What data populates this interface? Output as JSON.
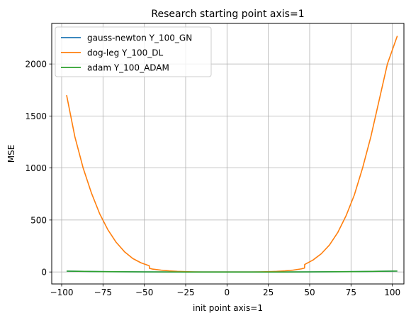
{
  "chart_data": {
    "type": "line",
    "title": "Research starting point axis=1",
    "xlabel": "init point axis=1",
    "ylabel": "MSE",
    "xlim": [
      -106,
      107
    ],
    "ylim": [
      -115,
      2390
    ],
    "xticks": [
      -100,
      -75,
      -50,
      -25,
      0,
      25,
      50,
      75,
      100
    ],
    "xtick_labels": [
      "−100",
      "−75",
      "−50",
      "−25",
      "0",
      "25",
      "50",
      "75",
      "100"
    ],
    "yticks": [
      0,
      500,
      1000,
      1500,
      2000
    ],
    "ytick_labels": [
      "0",
      "500",
      "1000",
      "1500",
      "2000"
    ],
    "grid": true,
    "legend_position": "upper-left",
    "series": [
      {
        "name": "gauss-newton Y_100_GN",
        "color": "#1f77b4",
        "x": [
          -97,
          -75,
          -50,
          -25,
          0,
          25,
          50,
          75,
          103
        ],
        "y": [
          8,
          3,
          1,
          0,
          0,
          0,
          1,
          3,
          9
        ]
      },
      {
        "name": "dog-leg Y_100_DL",
        "color": "#ff7f0e",
        "x": [
          -97,
          -92,
          -87,
          -82,
          -77,
          -72,
          -67,
          -62,
          -57,
          -52,
          -47,
          -46.9,
          -45,
          -40,
          -35,
          -30,
          -25,
          -20,
          -15,
          -10,
          -5,
          0,
          5,
          10,
          15,
          20,
          25,
          30,
          35,
          40,
          45,
          46.9,
          47,
          52,
          57,
          62,
          67,
          72,
          77,
          82,
          87,
          92,
          97,
          103
        ],
        "y": [
          1700,
          1300,
          1000,
          760,
          560,
          405,
          285,
          195,
          130,
          88,
          60,
          35,
          28,
          18,
          11,
          6,
          3,
          1,
          0,
          0,
          0,
          0,
          0,
          0,
          0,
          1,
          3,
          6,
          11,
          18,
          30,
          38,
          72,
          115,
          175,
          260,
          380,
          540,
          740,
          1000,
          1300,
          1650,
          2000,
          2270
        ]
      },
      {
        "name": "adam Y_100_ADAM",
        "color": "#2ca02c",
        "x": [
          -97,
          -75,
          -50,
          -25,
          0,
          25,
          50,
          75,
          103
        ],
        "y": [
          8,
          3,
          1,
          0,
          0,
          0,
          1,
          3,
          9
        ]
      }
    ]
  }
}
